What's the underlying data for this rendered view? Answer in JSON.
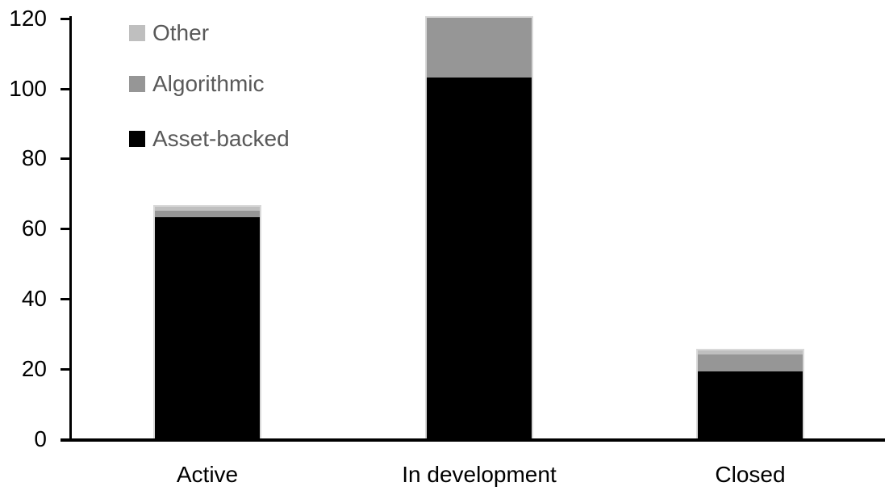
{
  "chart_data": {
    "type": "bar",
    "stacked": true,
    "categories": [
      "Active",
      "In development",
      "Closed"
    ],
    "series": [
      {
        "name": "Asset-backed",
        "color": "#000000",
        "values": [
          63,
          103,
          19
        ]
      },
      {
        "name": "Algorithmic",
        "color": "#969696",
        "values": [
          2,
          17,
          5
        ]
      },
      {
        "name": "Other",
        "color": "#bfbfbf",
        "values": [
          1,
          0,
          1
        ]
      }
    ],
    "totals": [
      66,
      120,
      25
    ],
    "xlabel": "",
    "ylabel": "",
    "title": "",
    "ylim": [
      0,
      120
    ],
    "y_ticks": [
      0,
      20,
      40,
      60,
      80,
      100,
      120
    ],
    "grid": false,
    "legend_position": "top-left",
    "legend_order": [
      "Other",
      "Algorithmic",
      "Asset-backed"
    ],
    "colors": {
      "background": "#ffffff",
      "axis": "#000000",
      "tick_label_text": "#000000",
      "category_label_text": "#000000",
      "legend_text": "#595959",
      "bar_edge": "#d9d9d9"
    }
  }
}
